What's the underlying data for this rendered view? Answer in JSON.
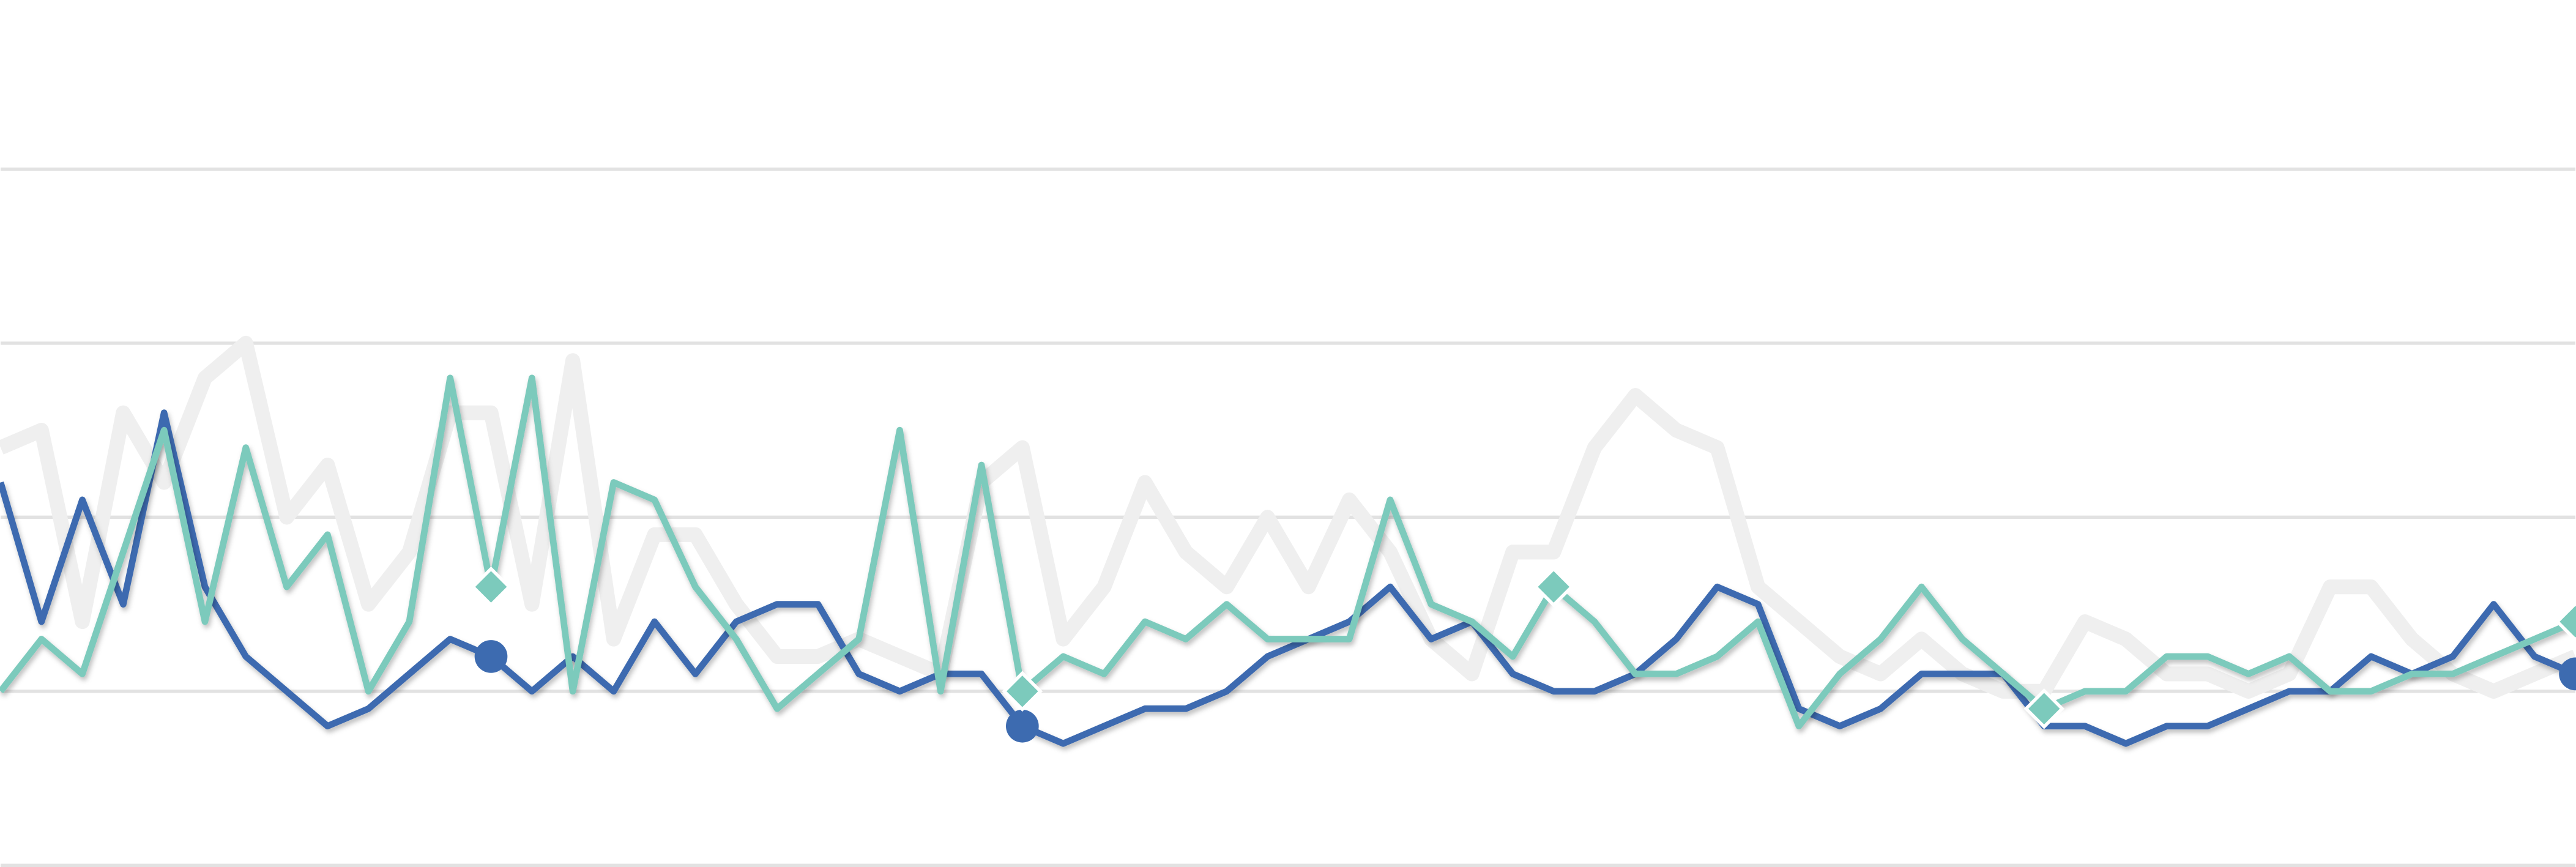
{
  "chart_data": {
    "type": "line",
    "ylim": [
      0,
      5
    ],
    "yticks": [
      0,
      1,
      2,
      3,
      4
    ],
    "grid": true,
    "series": [
      {
        "color": "#efefef",
        "width": 9,
        "values": [
          2.4,
          2.5,
          1.4,
          2.6,
          2.2,
          2.8,
          3.0,
          2.0,
          2.3,
          1.5,
          1.8,
          2.6,
          2.6,
          1.5,
          2.9,
          1.3,
          1.9,
          1.9,
          1.5,
          1.2,
          1.2,
          1.3,
          1.2,
          1.1,
          2.2,
          2.4,
          1.3,
          1.6,
          2.2,
          1.8,
          1.6,
          2.0,
          1.6,
          2.1,
          1.8,
          1.3,
          1.1,
          1.8,
          1.8,
          2.4,
          2.7,
          2.5,
          2.4,
          1.6,
          1.4,
          1.2,
          1.1,
          1.3,
          1.1,
          1.0,
          1.0,
          1.4,
          1.3,
          1.1,
          1.1,
          1.0,
          1.1,
          1.6,
          1.6,
          1.3,
          1.1,
          1.0,
          1.1,
          1.2
        ]
      },
      {
        "color": "#3d6bb0",
        "width": 4,
        "marker": "circle",
        "markers": [
          12,
          25,
          63
        ],
        "values": [
          2.2,
          1.4,
          2.1,
          1.5,
          2.6,
          1.6,
          1.2,
          1.0,
          0.8,
          0.9,
          1.1,
          1.3,
          1.2,
          1.0,
          1.2,
          1.0,
          1.4,
          1.1,
          1.4,
          1.5,
          1.5,
          1.1,
          1.0,
          1.1,
          1.1,
          0.8,
          0.7,
          0.8,
          0.9,
          0.9,
          1.0,
          1.2,
          1.3,
          1.4,
          1.6,
          1.3,
          1.4,
          1.1,
          1.0,
          1.0,
          1.1,
          1.3,
          1.6,
          1.5,
          0.9,
          0.8,
          0.9,
          1.1,
          1.1,
          1.1,
          0.8,
          0.8,
          0.7,
          0.8,
          0.8,
          0.9,
          1.0,
          1.0,
          1.2,
          1.1,
          1.2,
          1.5,
          1.2,
          1.1
        ]
      },
      {
        "color": "#7ccabc",
        "width": 4,
        "marker": "diamond",
        "markers": [
          12,
          25,
          38,
          50,
          63
        ],
        "values": [
          1.0,
          1.3,
          1.1,
          1.8,
          2.5,
          1.4,
          2.4,
          1.6,
          1.9,
          1.0,
          1.4,
          2.8,
          1.6,
          2.8,
          1.0,
          2.2,
          2.1,
          1.6,
          1.3,
          0.9,
          1.1,
          1.3,
          2.5,
          1.0,
          2.3,
          1.0,
          1.2,
          1.1,
          1.4,
          1.3,
          1.5,
          1.3,
          1.3,
          1.3,
          2.1,
          1.5,
          1.4,
          1.2,
          1.6,
          1.4,
          1.1,
          1.1,
          1.2,
          1.4,
          0.8,
          1.1,
          1.3,
          1.6,
          1.3,
          1.1,
          0.9,
          1.0,
          1.0,
          1.2,
          1.2,
          1.1,
          1.2,
          1.0,
          1.0,
          1.1,
          1.1,
          1.2,
          1.3,
          1.4
        ]
      }
    ]
  }
}
